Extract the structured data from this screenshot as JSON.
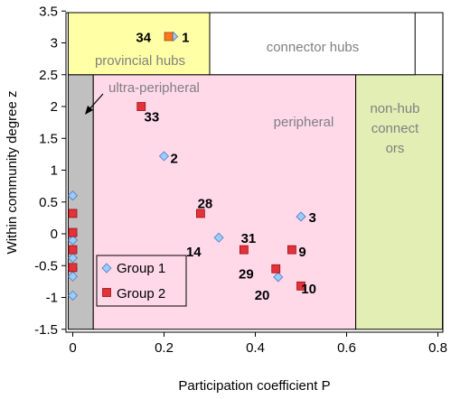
{
  "chart_data": {
    "type": "scatter",
    "xlabel": "Participation coefficient P",
    "ylabel": "Within community degree z",
    "xlim": [
      0,
      0.8
    ],
    "ylim": [
      -1.5,
      3.5
    ],
    "xticks": [
      0,
      0.2,
      0.4,
      0.6,
      0.8
    ],
    "xtick_labels": [
      "0",
      "0.2",
      "0.4",
      "0.6",
      "0.8"
    ],
    "yticks": [
      -1.5,
      -1,
      -0.5,
      0,
      0.5,
      1,
      1.5,
      2,
      2.5,
      3,
      3.5
    ],
    "ytick_labels": [
      "-1.5",
      "-1",
      "-0.5",
      "0",
      "0.5",
      "1",
      "1.5",
      "2",
      "2.5",
      "3",
      "3.5"
    ],
    "grid": false,
    "legend_placement": "bottom-left",
    "regions": [
      {
        "name": "ultra-peripheral",
        "label": "ultra-peripheral",
        "x": [
          -0.01,
          0.045
        ],
        "y": [
          -1.5,
          2.5
        ],
        "color": "#c0c0c0"
      },
      {
        "name": "peripheral",
        "label": "peripheral",
        "x": [
          0.045,
          0.62
        ],
        "y": [
          -1.5,
          2.5
        ],
        "color": "#ffd9e8"
      },
      {
        "name": "non-hub-connectors",
        "label": "non-hub connect ors",
        "label_lines": [
          "non-hub",
          "connect",
          "ors"
        ],
        "x": [
          0.62,
          0.81
        ],
        "y": [
          -1.5,
          2.5
        ],
        "color": "#e3eeb5"
      },
      {
        "name": "provincial-hubs",
        "label": "provincial hubs",
        "x": [
          -0.01,
          0.3
        ],
        "y": [
          2.5,
          3.5
        ],
        "color": "#ffffa6"
      },
      {
        "name": "connector-hubs",
        "label": "connector hubs",
        "x": [
          0.3,
          0.75
        ],
        "y": [
          2.5,
          3.5
        ],
        "color": "#ffffff"
      }
    ],
    "series": [
      {
        "name": "Group 1",
        "marker": "diamond",
        "color": "#99ccff",
        "stroke": "#5577bb",
        "points": [
          {
            "x": 0.0,
            "y": 0.6
          },
          {
            "x": 0.0,
            "y": -0.02
          },
          {
            "x": 0.0,
            "y": -0.1
          },
          {
            "x": 0.0,
            "y": -0.38
          },
          {
            "x": 0.0,
            "y": -0.55
          },
          {
            "x": 0.0,
            "y": -0.67
          },
          {
            "x": 0.0,
            "y": -0.97
          },
          {
            "x": 0.2,
            "y": 1.22
          },
          {
            "x": 0.5,
            "y": 0.27
          },
          {
            "x": 0.32,
            "y": -0.06
          },
          {
            "x": 0.45,
            "y": -0.68
          },
          {
            "x": 0.22,
            "y": 3.1
          }
        ]
      },
      {
        "name": "Group 2",
        "marker": "square",
        "color": "#e2323c",
        "stroke": "#991111",
        "points": [
          {
            "x": 0.0,
            "y": 0.32
          },
          {
            "x": 0.0,
            "y": 0.02
          },
          {
            "x": 0.0,
            "y": -0.25
          },
          {
            "x": 0.0,
            "y": -0.53
          },
          {
            "x": 0.15,
            "y": 2.0
          },
          {
            "x": 0.28,
            "y": 0.32
          },
          {
            "x": 0.375,
            "y": -0.25
          },
          {
            "x": 0.48,
            "y": -0.25
          },
          {
            "x": 0.445,
            "y": -0.55
          },
          {
            "x": 0.5,
            "y": -0.82
          }
        ]
      }
    ],
    "highlight_points": [
      {
        "x": 0.21,
        "y": 3.1,
        "color": "#ff7722"
      }
    ],
    "annotations": [
      {
        "text": "34",
        "x": 0.155,
        "y": 3.1
      },
      {
        "text": "1",
        "x": 0.247,
        "y": 3.1
      },
      {
        "text": "33",
        "x": 0.173,
        "y": 1.85
      },
      {
        "text": "2",
        "x": 0.222,
        "y": 1.2
      },
      {
        "text": "28",
        "x": 0.29,
        "y": 0.49
      },
      {
        "text": "3",
        "x": 0.525,
        "y": 0.27
      },
      {
        "text": "31",
        "x": 0.385,
        "y": -0.06
      },
      {
        "text": "14",
        "x": 0.265,
        "y": -0.27
      },
      {
        "text": "9",
        "x": 0.503,
        "y": -0.27
      },
      {
        "text": "29",
        "x": 0.38,
        "y": -0.62
      },
      {
        "text": "20",
        "x": 0.415,
        "y": -0.95
      },
      {
        "text": "10",
        "x": 0.517,
        "y": -0.85
      }
    ]
  }
}
